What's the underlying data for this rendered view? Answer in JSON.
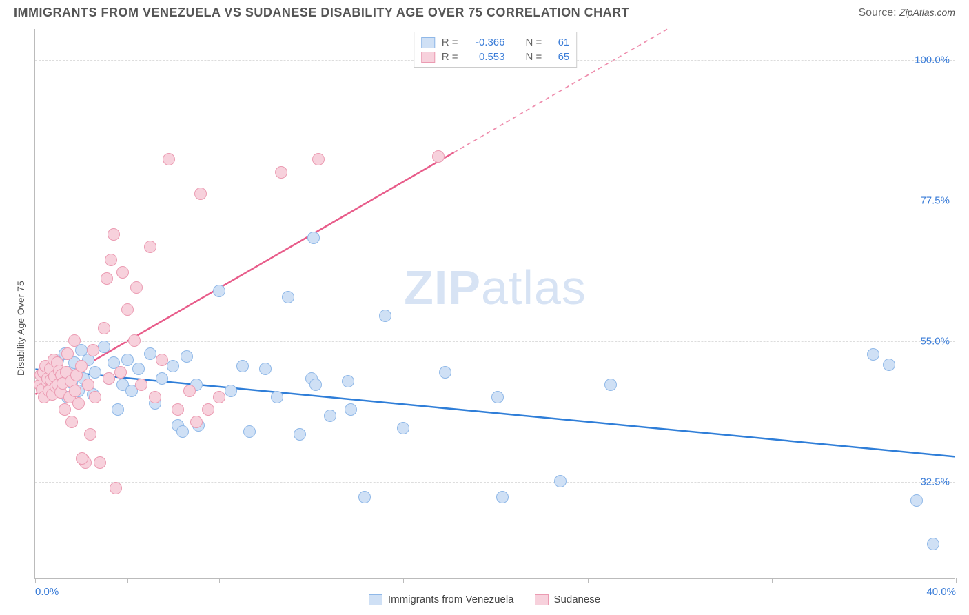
{
  "title": "IMMIGRANTS FROM VENEZUELA VS SUDANESE DISABILITY AGE OVER 75 CORRELATION CHART",
  "source_prefix": "Source: ",
  "source": "ZipAtlas.com",
  "watermark_a": "ZIP",
  "watermark_b": "atlas",
  "ylabel": "Disability Age Over 75",
  "chart": {
    "type": "scatter",
    "background_color": "#ffffff",
    "grid_color": "#dddddd",
    "axis_color": "#bbbbbb",
    "text_color": "#555555",
    "value_color": "#3b7dd8",
    "xlim": [
      0,
      40
    ],
    "ylim": [
      17,
      105
    ],
    "x_ticks": [
      0,
      4,
      8,
      12,
      16,
      20,
      24,
      28,
      32,
      36,
      40
    ],
    "x_tick_labels": {
      "0": "0.0%",
      "40": "40.0%"
    },
    "y_grid": [
      32.5,
      55.0,
      77.5,
      100.0
    ],
    "y_tick_labels": [
      "32.5%",
      "55.0%",
      "77.5%",
      "100.0%"
    ],
    "marker_radius": 9,
    "marker_border_width": 1.2,
    "line_width": 2.5,
    "title_fontsize": 18,
    "label_fontsize": 14,
    "tick_fontsize": 15,
    "series": [
      {
        "name": "Immigrants from Venezuela",
        "fill": "#cfe0f5",
        "stroke": "#8fb8e8",
        "line_color": "#2f7ed8",
        "R": "-0.366",
        "N": "61",
        "trend": {
          "x1": 0,
          "y1": 50.5,
          "x2": 40,
          "y2": 36.5,
          "dash_from_x": null
        },
        "points": [
          [
            0.5,
            49
          ],
          [
            0.6,
            50.5
          ],
          [
            0.7,
            48
          ],
          [
            0.8,
            51
          ],
          [
            0.8,
            47.5
          ],
          [
            1.0,
            52
          ],
          [
            1.2,
            49.5
          ],
          [
            1.3,
            53
          ],
          [
            1.4,
            46
          ],
          [
            1.5,
            50
          ],
          [
            1.6,
            48.3
          ],
          [
            1.7,
            51.5
          ],
          [
            1.9,
            47
          ],
          [
            2.0,
            53.5
          ],
          [
            2.1,
            49
          ],
          [
            2.3,
            52
          ],
          [
            2.5,
            46.5
          ],
          [
            2.6,
            50
          ],
          [
            3.0,
            54
          ],
          [
            3.2,
            49
          ],
          [
            3.4,
            51.5
          ],
          [
            3.6,
            44
          ],
          [
            3.8,
            48
          ],
          [
            4.0,
            52
          ],
          [
            4.2,
            47
          ],
          [
            4.5,
            50.5
          ],
          [
            5.0,
            53
          ],
          [
            5.2,
            45
          ],
          [
            5.5,
            49
          ],
          [
            6.0,
            51
          ],
          [
            6.2,
            41.5
          ],
          [
            6.4,
            40.5
          ],
          [
            6.6,
            52.5
          ],
          [
            7.0,
            48
          ],
          [
            7.1,
            41.5
          ],
          [
            8.0,
            63
          ],
          [
            8.5,
            47
          ],
          [
            9.0,
            51
          ],
          [
            9.3,
            40.5
          ],
          [
            10.0,
            50.5
          ],
          [
            10.5,
            46
          ],
          [
            11.0,
            62
          ],
          [
            11.5,
            40
          ],
          [
            12.0,
            49
          ],
          [
            12.1,
            71.5
          ],
          [
            12.2,
            48
          ],
          [
            12.8,
            43
          ],
          [
            13.6,
            48.5
          ],
          [
            13.7,
            44
          ],
          [
            14.3,
            30
          ],
          [
            15.2,
            59
          ],
          [
            16.0,
            41
          ],
          [
            17.8,
            50
          ],
          [
            20.1,
            46
          ],
          [
            20.3,
            30
          ],
          [
            22.8,
            32.5
          ],
          [
            36.4,
            52.8
          ],
          [
            37.1,
            51.2
          ],
          [
            38.3,
            29.5
          ],
          [
            39.0,
            22.5
          ],
          [
            25,
            48
          ]
        ]
      },
      {
        "name": "Sudanese",
        "fill": "#f7d1dc",
        "stroke": "#eb9bb2",
        "line_color": "#e85c8a",
        "R": "0.553",
        "N": "65",
        "trend": {
          "x1": 0,
          "y1": 46.5,
          "x2": 27.5,
          "y2": 105,
          "dash_from_x": 18.2
        },
        "points": [
          [
            0.2,
            48
          ],
          [
            0.25,
            49.5
          ],
          [
            0.3,
            47.2
          ],
          [
            0.35,
            50
          ],
          [
            0.4,
            46
          ],
          [
            0.45,
            51
          ],
          [
            0.5,
            48.5
          ],
          [
            0.55,
            49
          ],
          [
            0.6,
            47
          ],
          [
            0.65,
            50.5
          ],
          [
            0.7,
            48.8
          ],
          [
            0.75,
            46.5
          ],
          [
            0.8,
            52
          ],
          [
            0.85,
            49.3
          ],
          [
            0.9,
            47.7
          ],
          [
            0.95,
            51.5
          ],
          [
            1.0,
            48
          ],
          [
            1.05,
            50.2
          ],
          [
            1.1,
            46.8
          ],
          [
            1.15,
            49.5
          ],
          [
            1.2,
            48.2
          ],
          [
            1.3,
            44
          ],
          [
            1.35,
            50
          ],
          [
            1.4,
            53
          ],
          [
            1.5,
            46
          ],
          [
            1.55,
            48.5
          ],
          [
            1.6,
            42
          ],
          [
            1.7,
            55
          ],
          [
            1.75,
            47
          ],
          [
            1.8,
            49.5
          ],
          [
            1.9,
            45
          ],
          [
            2.0,
            51
          ],
          [
            2.1,
            36
          ],
          [
            2.2,
            35.5
          ],
          [
            2.3,
            48
          ],
          [
            2.4,
            40
          ],
          [
            2.5,
            53.5
          ],
          [
            2.6,
            46
          ],
          [
            2.8,
            35.5
          ],
          [
            3.0,
            57
          ],
          [
            3.1,
            65
          ],
          [
            3.2,
            49
          ],
          [
            3.3,
            68
          ],
          [
            3.4,
            72
          ],
          [
            3.5,
            31.5
          ],
          [
            3.7,
            50
          ],
          [
            3.8,
            66
          ],
          [
            4.0,
            60
          ],
          [
            4.3,
            55
          ],
          [
            4.4,
            63.5
          ],
          [
            4.6,
            48
          ],
          [
            5.0,
            70
          ],
          [
            5.2,
            46
          ],
          [
            5.5,
            52
          ],
          [
            5.8,
            84
          ],
          [
            6.2,
            44
          ],
          [
            6.7,
            47
          ],
          [
            7.0,
            42
          ],
          [
            7.2,
            78.5
          ],
          [
            7.5,
            44
          ],
          [
            8.0,
            46
          ],
          [
            10.7,
            82
          ],
          [
            12.3,
            84
          ],
          [
            17.5,
            84.5
          ],
          [
            2.05,
            36.2
          ]
        ]
      }
    ]
  },
  "legend_top": {
    "R_label": "R =",
    "N_label": "N ="
  }
}
